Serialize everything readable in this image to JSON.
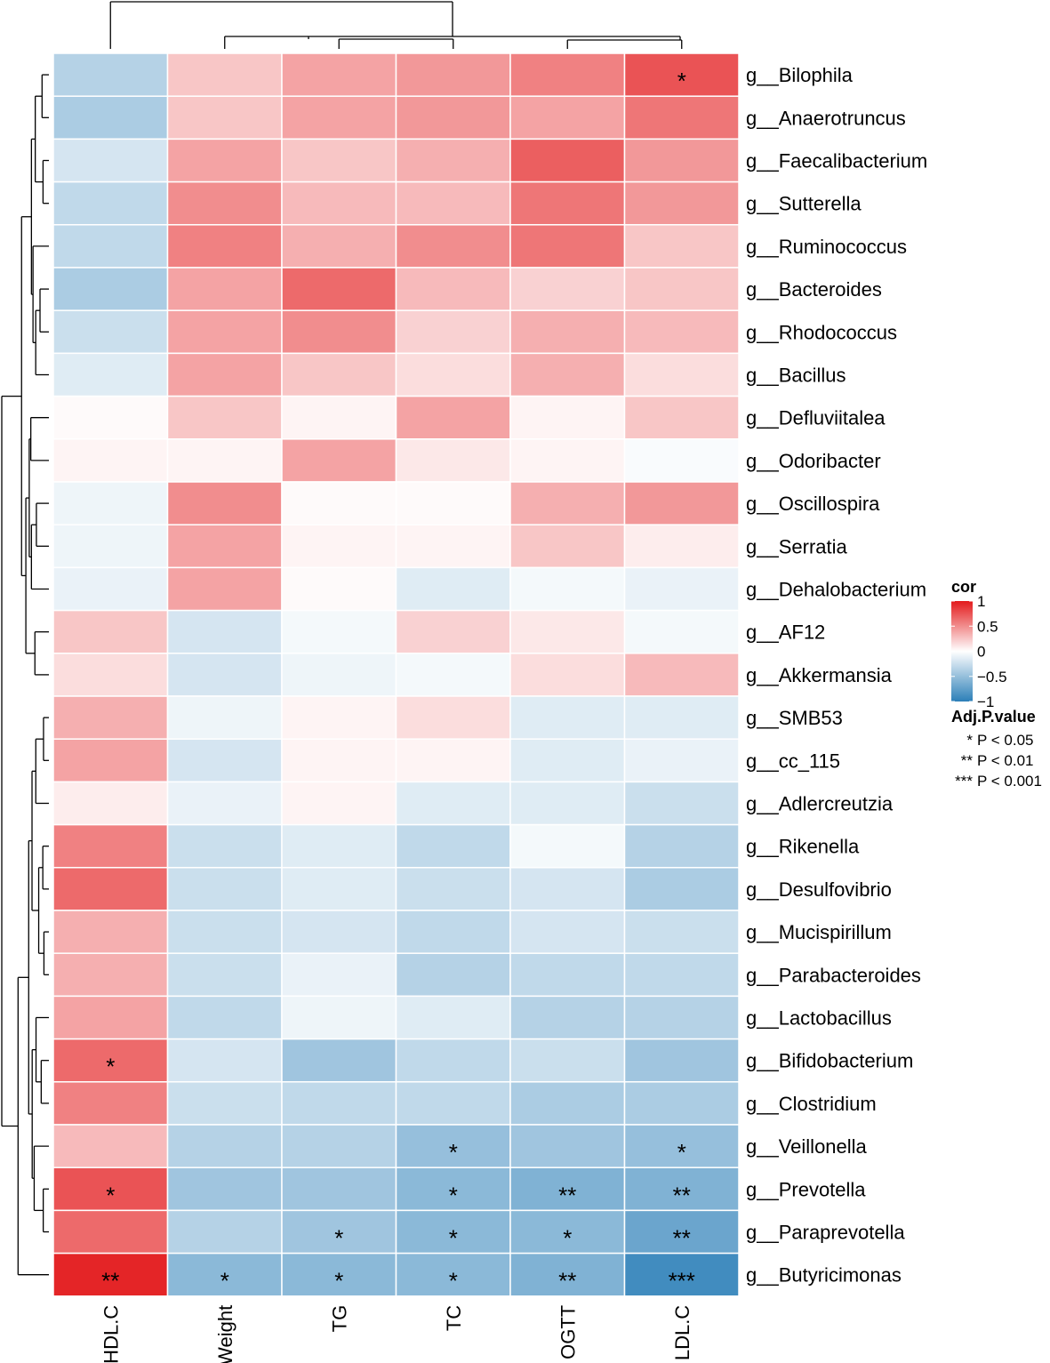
{
  "chart_data": {
    "type": "heatmap",
    "columns": [
      "HDL.C",
      "Weight",
      "TG",
      "TC",
      "OGTT",
      "LDL.C"
    ],
    "rows": [
      "g__Bilophila",
      "g__Anaerotruncus",
      "g__Faecalibacterium",
      "g__Sutterella",
      "g__Ruminococcus",
      "g__Bacteroides",
      "g__Rhodococcus",
      "g__Bacillus",
      "g__Defluviitalea",
      "g__Odoribacter",
      "g__Oscillospira",
      "g__Serratia",
      "g__Dehalobacterium",
      "g__AF12",
      "g__Akkermansia",
      "g__SMB53",
      "g__cc_115",
      "g__Adlercreutzia",
      "g__Rikenella",
      "g__Desulfovibrio",
      "g__Mucispirillum",
      "g__Parabacteroides",
      "g__Lactobacillus",
      "g__Bifidobacterium",
      "g__Clostridium",
      "g__Veillonella",
      "g__Prevotella",
      "g__Paraprevotella",
      "g__Butyricimonas"
    ],
    "values": [
      [
        -0.35,
        0.25,
        0.4,
        0.45,
        0.55,
        0.75
      ],
      [
        -0.4,
        0.25,
        0.4,
        0.45,
        0.4,
        0.6
      ],
      [
        -0.2,
        0.4,
        0.25,
        0.35,
        0.7,
        0.45
      ],
      [
        -0.3,
        0.5,
        0.3,
        0.3,
        0.6,
        0.45
      ],
      [
        -0.3,
        0.55,
        0.35,
        0.5,
        0.6,
        0.25
      ],
      [
        -0.4,
        0.4,
        0.65,
        0.3,
        0.2,
        0.25
      ],
      [
        -0.25,
        0.4,
        0.5,
        0.2,
        0.35,
        0.3
      ],
      [
        -0.15,
        0.4,
        0.25,
        0.15,
        0.35,
        0.15
      ],
      [
        0.02,
        0.25,
        0.05,
        0.4,
        0.05,
        0.25
      ],
      [
        0.05,
        0.05,
        0.4,
        0.1,
        0.05,
        -0.03
      ],
      [
        -0.08,
        0.5,
        0.02,
        0.02,
        0.35,
        0.45
      ],
      [
        -0.08,
        0.4,
        0.05,
        0.05,
        0.25,
        0.08
      ],
      [
        -0.1,
        0.4,
        0.02,
        -0.15,
        -0.05,
        -0.1
      ],
      [
        0.25,
        -0.2,
        -0.05,
        0.2,
        0.1,
        -0.05
      ],
      [
        0.15,
        -0.2,
        -0.08,
        -0.05,
        0.15,
        0.3
      ],
      [
        0.35,
        -0.08,
        0.05,
        0.15,
        -0.15,
        -0.15
      ],
      [
        0.4,
        -0.2,
        0.05,
        0.05,
        -0.15,
        -0.1
      ],
      [
        0.08,
        -0.1,
        0.05,
        -0.15,
        -0.15,
        -0.25
      ],
      [
        0.55,
        -0.25,
        -0.15,
        -0.3,
        -0.05,
        -0.35
      ],
      [
        0.65,
        -0.25,
        -0.15,
        -0.25,
        -0.2,
        -0.4
      ],
      [
        0.35,
        -0.25,
        -0.2,
        -0.3,
        -0.2,
        -0.25
      ],
      [
        0.35,
        -0.25,
        -0.1,
        -0.35,
        -0.3,
        -0.3
      ],
      [
        0.4,
        -0.3,
        -0.08,
        -0.15,
        -0.35,
        -0.35
      ],
      [
        0.65,
        -0.2,
        -0.45,
        -0.3,
        -0.25,
        -0.45
      ],
      [
        0.55,
        -0.25,
        -0.3,
        -0.3,
        -0.4,
        -0.4
      ],
      [
        0.3,
        -0.35,
        -0.35,
        -0.5,
        -0.45,
        -0.5
      ],
      [
        0.75,
        -0.45,
        -0.45,
        -0.55,
        -0.6,
        -0.6
      ],
      [
        0.65,
        -0.35,
        -0.45,
        -0.55,
        -0.55,
        -0.7
      ],
      [
        0.95,
        -0.55,
        -0.55,
        -0.55,
        -0.6,
        -0.9
      ]
    ],
    "significance": [
      [
        "",
        "",
        "",
        "",
        "",
        "*"
      ],
      [
        "",
        "",
        "",
        "",
        "",
        ""
      ],
      [
        "",
        "",
        "",
        "",
        "",
        ""
      ],
      [
        "",
        "",
        "",
        "",
        "",
        ""
      ],
      [
        "",
        "",
        "",
        "",
        "",
        ""
      ],
      [
        "",
        "",
        "",
        "",
        "",
        ""
      ],
      [
        "",
        "",
        "",
        "",
        "",
        ""
      ],
      [
        "",
        "",
        "",
        "",
        "",
        ""
      ],
      [
        "",
        "",
        "",
        "",
        "",
        ""
      ],
      [
        "",
        "",
        "",
        "",
        "",
        ""
      ],
      [
        "",
        "",
        "",
        "",
        "",
        ""
      ],
      [
        "",
        "",
        "",
        "",
        "",
        ""
      ],
      [
        "",
        "",
        "",
        "",
        "",
        ""
      ],
      [
        "",
        "",
        "",
        "",
        "",
        ""
      ],
      [
        "",
        "",
        "",
        "",
        "",
        ""
      ],
      [
        "",
        "",
        "",
        "",
        "",
        ""
      ],
      [
        "",
        "",
        "",
        "",
        "",
        ""
      ],
      [
        "",
        "",
        "",
        "",
        "",
        ""
      ],
      [
        "",
        "",
        "",
        "",
        "",
        ""
      ],
      [
        "",
        "",
        "",
        "",
        "",
        ""
      ],
      [
        "",
        "",
        "",
        "",
        "",
        ""
      ],
      [
        "",
        "",
        "",
        "",
        "",
        ""
      ],
      [
        "",
        "",
        "",
        "",
        "",
        ""
      ],
      [
        "*",
        "",
        "",
        "",
        "",
        ""
      ],
      [
        "",
        "",
        "",
        "",
        "",
        ""
      ],
      [
        "",
        "",
        "",
        "*",
        "",
        "*"
      ],
      [
        "*",
        "",
        "",
        "*",
        "**",
        "**"
      ],
      [
        "",
        "",
        "*",
        "*",
        "*",
        "**"
      ],
      [
        "**",
        "*",
        "*",
        "*",
        "**",
        "***"
      ]
    ],
    "color_scale": {
      "min": -1,
      "max": 1,
      "low_color": "#2c7fb8",
      "mid_color": "#ffffff",
      "high_color": "#e31a1c"
    },
    "legend": {
      "title": "cor",
      "ticks": [
        {
          "value": 1,
          "label": "1"
        },
        {
          "value": 0.5,
          "label": "0.5"
        },
        {
          "value": 0,
          "label": "0"
        },
        {
          "value": -0.5,
          "label": "−0.5"
        },
        {
          "value": -1,
          "label": "−1"
        }
      ],
      "sig_title": "Adj.P.value",
      "sig_items": [
        {
          "symbol": "*",
          "label": "P < 0.05"
        },
        {
          "symbol": "**",
          "label": "P < 0.01"
        },
        {
          "symbol": "***",
          "label": "P < 0.001"
        }
      ],
      "placement": "right"
    },
    "dendrograms": {
      "rows": true,
      "columns": true
    }
  }
}
